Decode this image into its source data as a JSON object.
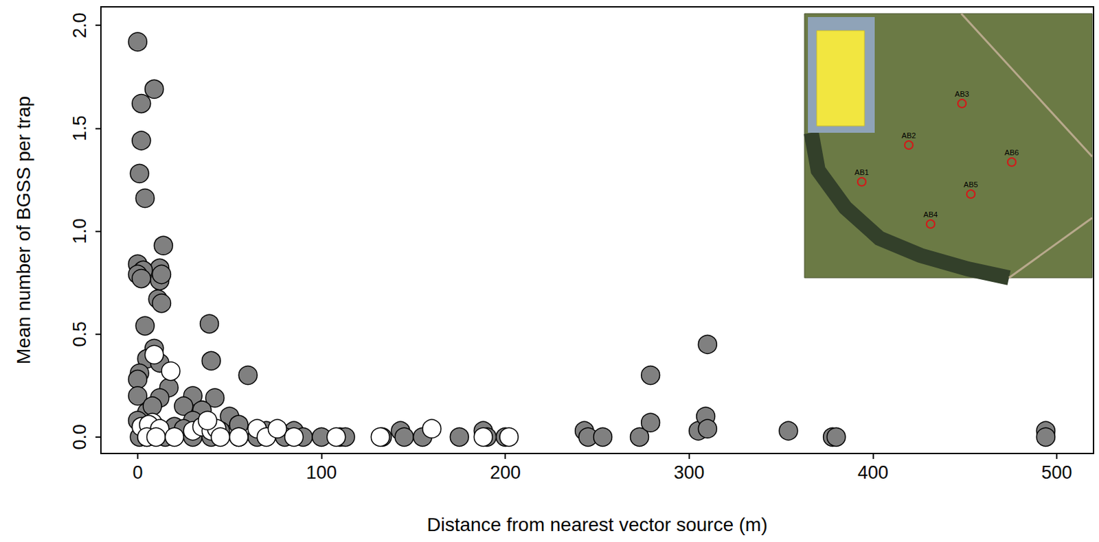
{
  "chart_data": {
    "type": "scatter",
    "x_label": "Distance from nearest vector source (m)",
    "y_label": "Mean number of BGSS per trap",
    "xlim": [
      -20,
      520
    ],
    "xticks": [
      0,
      100,
      200,
      300,
      400,
      500
    ],
    "ylim": [
      -0.08,
      2.09
    ],
    "yticks": [
      {
        "value": 0,
        "label": "0.0"
      },
      {
        "value": 0.5,
        "label": "0.5"
      },
      {
        "value": 1,
        "label": "1.0"
      },
      {
        "value": 1.5,
        "label": "1.5"
      },
      {
        "value": 2,
        "label": "2.0"
      }
    ],
    "grid": false,
    "marker": "circle",
    "annotations": [
      "AB1",
      "AB2",
      "AB3",
      "AB4",
      "AB5",
      "AB6"
    ],
    "series": [
      {
        "color": "#808080",
        "x": [
          0,
          2,
          9,
          2,
          1,
          4,
          14,
          0,
          12,
          3,
          0,
          2,
          12,
          13,
          11,
          13,
          4,
          39,
          40,
          60,
          9,
          5,
          12,
          1,
          0,
          17,
          30,
          0,
          42,
          12,
          5,
          8,
          25,
          35,
          50,
          30,
          38,
          55,
          20,
          0,
          10,
          25,
          45,
          70,
          85,
          1,
          5,
          15,
          30,
          40,
          55,
          65,
          80,
          90,
          100,
          110,
          113,
          133,
          143,
          145,
          155,
          175,
          188,
          190,
          200,
          243,
          245,
          253,
          273,
          279,
          279,
          305,
          309,
          310,
          310,
          354,
          378,
          380,
          494,
          494
        ],
        "values": [
          1.92,
          1.62,
          1.69,
          1.44,
          1.28,
          1.16,
          0.93,
          0.84,
          0.82,
          0.81,
          0.79,
          0.77,
          0.76,
          0.79,
          0.67,
          0.65,
          0.54,
          0.55,
          0.37,
          0.3,
          0.43,
          0.38,
          0.36,
          0.31,
          0.28,
          0.24,
          0.2,
          0.2,
          0.19,
          0.19,
          0.12,
          0.15,
          0.15,
          0.13,
          0.1,
          0.08,
          0.06,
          0.06,
          0.05,
          0.08,
          0.05,
          0.04,
          0.03,
          0.03,
          0.03,
          0,
          0,
          0,
          0,
          0,
          0,
          0,
          0,
          0,
          0,
          0,
          0,
          0,
          0.03,
          0,
          0,
          0,
          0.03,
          0,
          0,
          0.03,
          0,
          0,
          0,
          0.07,
          0.3,
          0.03,
          0.1,
          0.04,
          0.45,
          0.03,
          0,
          0,
          0.03,
          0
        ]
      },
      {
        "color": "#ffffff",
        "x": [
          18,
          9,
          8,
          2,
          6,
          12,
          5,
          10,
          20,
          30,
          35,
          40,
          43,
          38,
          45,
          55,
          65,
          70,
          76,
          85,
          108,
          132,
          160,
          188,
          202
        ],
        "values": [
          0.32,
          0.4,
          0.07,
          0.05,
          0.06,
          0.04,
          0,
          0,
          0,
          0.03,
          0.05,
          0.03,
          0.04,
          0.08,
          0,
          0,
          0.04,
          0,
          0.04,
          0,
          0,
          0,
          0.04,
          0,
          0
        ]
      }
    ]
  }
}
